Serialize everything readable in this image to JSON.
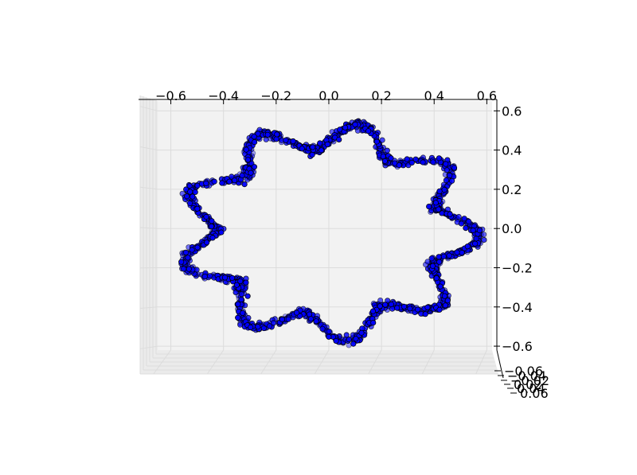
{
  "chart_data": {
    "type": "scatter",
    "projection": "3d",
    "title": "",
    "xlabel": "",
    "ylabel": "",
    "zlabel": "",
    "xlim": [
      -0.65,
      0.62
    ],
    "ylim": [
      -0.62,
      0.65
    ],
    "zlim": [
      -0.06,
      0.06
    ],
    "x_ticks": [
      "−0.6",
      "−0.4",
      "−0.2",
      "0.0",
      "0.2",
      "0.4",
      "0.6"
    ],
    "y_ticks": [
      "0.6",
      "0.4",
      "0.2",
      "0.0",
      "−0.2",
      "−0.4",
      "−0.6"
    ],
    "z_ticks": [
      "−0.06",
      "−0.04",
      "−0.02",
      "0.02",
      "0.04",
      "0.06"
    ],
    "grid": true,
    "shape": "noisy closed curve with 9 lobes",
    "radius_mean": 0.5,
    "lobe_amplitude": 0.07,
    "lobe_count": 9,
    "point_count": 1600,
    "colors": {
      "points": "#0000ff",
      "point_edge": "#000000",
      "pane": "#f2f2f2",
      "grid": "#dcdcdc"
    }
  }
}
